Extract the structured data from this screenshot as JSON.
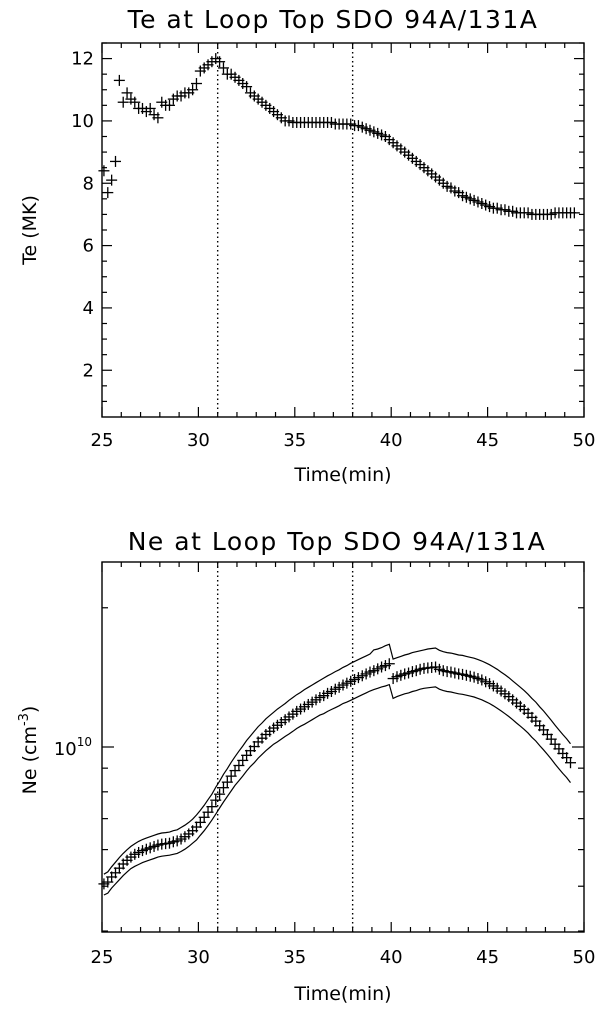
{
  "chart_data": [
    {
      "type": "scatter",
      "title": "Te at Loop Top SDO 94A/131A",
      "xlabel": "Time(min)",
      "ylabel": "Te (MK)",
      "xlim": [
        25,
        50
      ],
      "ylim": [
        0.5,
        12.5
      ],
      "xticks": [
        25,
        30,
        35,
        40,
        45,
        50
      ],
      "yticks": [
        2,
        4,
        6,
        8,
        10,
        12
      ],
      "vlines": [
        31,
        38
      ],
      "grid": false,
      "series": [
        {
          "marker": "plus",
          "x": [
            25.1,
            25.3,
            25.5,
            25.7,
            25.9,
            26.1,
            26.3,
            26.5,
            26.7,
            26.9,
            27.1,
            27.3,
            27.5,
            27.7,
            27.9,
            28.1,
            28.3,
            28.5,
            28.7,
            28.9,
            29.1,
            29.3,
            29.5,
            29.7,
            29.9,
            30.1,
            30.3,
            30.5,
            30.7,
            30.9,
            31.1,
            31.3,
            31.5,
            31.7,
            31.9,
            32.1,
            32.3,
            32.5,
            32.7,
            32.9,
            33.1,
            33.3,
            33.5,
            33.7,
            33.9,
            34.1,
            34.3,
            34.5,
            34.7,
            34.9,
            35.1,
            35.3,
            35.5,
            35.7,
            35.9,
            36.1,
            36.3,
            36.5,
            36.7,
            36.9,
            37.1,
            37.3,
            37.5,
            37.7,
            37.9,
            38.1,
            38.3,
            38.5,
            38.7,
            38.9,
            39.1,
            39.3,
            39.5,
            39.7,
            39.9,
            40.1,
            40.3,
            40.5,
            40.7,
            40.9,
            41.1,
            41.3,
            41.5,
            41.7,
            41.9,
            42.1,
            42.3,
            42.5,
            42.7,
            42.9,
            43.1,
            43.3,
            43.5,
            43.7,
            43.9,
            44.1,
            44.3,
            44.5,
            44.7,
            44.9,
            45.1,
            45.3,
            45.5,
            45.7,
            45.9,
            46.1,
            46.3,
            46.5,
            46.7,
            46.9,
            47.1,
            47.3,
            47.5,
            47.7,
            47.9,
            48.1,
            48.3,
            48.5,
            48.7,
            48.9,
            49.1,
            49.3,
            49.5
          ],
          "y": [
            8.4,
            7.7,
            8.1,
            8.7,
            11.3,
            10.6,
            10.9,
            10.7,
            10.6,
            10.4,
            10.4,
            10.3,
            10.4,
            10.2,
            10.1,
            10.6,
            10.5,
            10.5,
            10.7,
            10.8,
            10.8,
            10.9,
            10.9,
            11.0,
            11.2,
            11.6,
            11.7,
            11.8,
            11.9,
            12.0,
            11.9,
            11.7,
            11.5,
            11.5,
            11.4,
            11.3,
            11.2,
            11.1,
            10.9,
            10.8,
            10.7,
            10.6,
            10.5,
            10.4,
            10.3,
            10.2,
            10.1,
            10.0,
            10.0,
            9.95,
            9.95,
            9.95,
            9.95,
            9.95,
            9.95,
            9.95,
            9.95,
            9.95,
            9.95,
            9.95,
            9.9,
            9.9,
            9.9,
            9.9,
            9.9,
            9.85,
            9.85,
            9.8,
            9.75,
            9.7,
            9.65,
            9.6,
            9.55,
            9.5,
            9.4,
            9.3,
            9.2,
            9.1,
            9.0,
            8.9,
            8.8,
            8.7,
            8.6,
            8.5,
            8.4,
            8.3,
            8.2,
            8.1,
            8.0,
            7.9,
            7.85,
            7.75,
            7.7,
            7.6,
            7.55,
            7.5,
            7.45,
            7.4,
            7.35,
            7.3,
            7.25,
            7.2,
            7.2,
            7.15,
            7.15,
            7.1,
            7.1,
            7.05,
            7.05,
            7.05,
            7.05,
            7.0,
            7.0,
            7.0,
            7.0,
            7.0,
            7.0,
            7.05,
            7.05,
            7.05,
            7.05,
            7.05,
            7.05
          ]
        }
      ]
    },
    {
      "type": "scatter",
      "title": "Ne at Loop Top SDO 94A/131A",
      "xlabel": "Time(min)",
      "ylabel": "Ne (cm-3)",
      "ylabel_main": "Ne (cm",
      "ylabel_sup": "-3",
      "ylabel_end": ")",
      "ytick_label_base": "10",
      "ytick_label_exp": "10",
      "yscale": "log",
      "xlim": [
        25,
        50
      ],
      "ylim_log10": [
        9.6,
        10.4
      ],
      "xticks": [
        25,
        30,
        35,
        40,
        45,
        50
      ],
      "major_ytick_log10": 10,
      "vlines": [
        31,
        38
      ],
      "grid": false,
      "series": [
        {
          "marker": "plus",
          "x": [
            25.1,
            25.3,
            25.5,
            25.7,
            25.9,
            26.1,
            26.3,
            26.5,
            26.7,
            26.9,
            27.1,
            27.3,
            27.5,
            27.7,
            27.9,
            28.1,
            28.3,
            28.5,
            28.7,
            28.9,
            29.1,
            29.3,
            29.5,
            29.7,
            29.9,
            30.1,
            30.3,
            30.5,
            30.7,
            30.9,
            31.1,
            31.3,
            31.5,
            31.7,
            31.9,
            32.1,
            32.3,
            32.5,
            32.7,
            32.9,
            33.1,
            33.3,
            33.5,
            33.7,
            33.9,
            34.1,
            34.3,
            34.5,
            34.7,
            34.9,
            35.1,
            35.3,
            35.5,
            35.7,
            35.9,
            36.1,
            36.3,
            36.5,
            36.7,
            36.9,
            37.1,
            37.3,
            37.5,
            37.7,
            37.9,
            38.1,
            38.3,
            38.5,
            38.7,
            38.9,
            39.1,
            39.3,
            39.5,
            39.7,
            39.9,
            40.1,
            40.3,
            40.5,
            40.7,
            40.9,
            41.1,
            41.3,
            41.5,
            41.7,
            41.9,
            42.1,
            42.3,
            42.5,
            42.7,
            42.9,
            43.1,
            43.3,
            43.5,
            43.7,
            43.9,
            44.1,
            44.3,
            44.5,
            44.7,
            44.9,
            45.1,
            45.3,
            45.5,
            45.7,
            45.9,
            46.1,
            46.3,
            46.5,
            46.7,
            46.9,
            47.1,
            47.3,
            47.5,
            47.7,
            47.9,
            48.1,
            48.3,
            48.5,
            48.7,
            48.9,
            49.1,
            49.3
          ],
          "y_log10": [
            9.704,
            9.708,
            9.719,
            9.728,
            9.738,
            9.747,
            9.755,
            9.762,
            9.768,
            9.772,
            9.776,
            9.779,
            9.782,
            9.785,
            9.788,
            9.79,
            9.791,
            9.792,
            9.795,
            9.797,
            9.801,
            9.806,
            9.812,
            9.819,
            9.827,
            9.837,
            9.848,
            9.859,
            9.871,
            9.885,
            9.898,
            9.912,
            9.924,
            9.937,
            9.949,
            9.96,
            9.971,
            9.982,
            9.992,
            10.001,
            10.011,
            10.019,
            10.027,
            10.034,
            10.041,
            10.047,
            10.053,
            10.059,
            10.065,
            10.071,
            10.077,
            10.082,
            10.087,
            10.092,
            10.097,
            10.102,
            10.107,
            10.111,
            10.116,
            10.12,
            10.125,
            10.129,
            10.134,
            10.138,
            10.142,
            10.146,
            10.15,
            10.154,
            10.158,
            10.162,
            10.165,
            10.169,
            10.173,
            10.176,
            10.18,
            10.148,
            10.152,
            10.155,
            10.158,
            10.16,
            10.163,
            10.165,
            10.168,
            10.17,
            10.171,
            10.172,
            10.173,
            10.168,
            10.165,
            10.163,
            10.162,
            10.16,
            10.158,
            10.157,
            10.155,
            10.153,
            10.151,
            10.148,
            10.145,
            10.141,
            10.137,
            10.132,
            10.127,
            10.121,
            10.115,
            10.109,
            10.102,
            10.095,
            10.088,
            10.081,
            10.073,
            10.064,
            10.056,
            10.046,
            10.037,
            10.027,
            10.017,
            10.006,
            9.996,
            9.986,
            9.977,
            9.966
          ],
          "upper_log10": [
            9.725,
            9.73,
            9.741,
            9.751,
            9.761,
            9.77,
            9.778,
            9.785,
            9.791,
            9.796,
            9.8,
            9.803,
            9.806,
            9.809,
            9.812,
            9.814,
            9.815,
            9.816,
            9.819,
            9.821,
            9.826,
            9.831,
            9.837,
            9.844,
            9.853,
            9.863,
            9.874,
            9.886,
            9.898,
            9.913,
            9.926,
            9.941,
            9.953,
            9.967,
            9.979,
            9.991,
            10.002,
            10.014,
            10.024,
            10.034,
            10.044,
            10.052,
            10.061,
            10.068,
            10.075,
            10.082,
            10.088,
            10.094,
            10.101,
            10.107,
            10.113,
            10.118,
            10.124,
            10.129,
            10.134,
            10.139,
            10.144,
            10.149,
            10.154,
            10.158,
            10.163,
            10.167,
            10.172,
            10.176,
            10.181,
            10.185,
            10.189,
            10.193,
            10.197,
            10.201,
            10.21,
            10.212,
            10.215,
            10.219,
            10.222,
            10.19,
            10.193,
            10.196,
            10.199,
            10.201,
            10.204,
            10.206,
            10.208,
            10.21,
            10.212,
            10.213,
            10.214,
            10.209,
            10.206,
            10.204,
            10.203,
            10.201,
            10.199,
            10.198,
            10.196,
            10.194,
            10.192,
            10.189,
            10.186,
            10.182,
            10.178,
            10.173,
            10.168,
            10.162,
            10.156,
            10.15,
            10.143,
            10.136,
            10.129,
            10.122,
            10.114,
            10.105,
            10.097,
            10.087,
            10.078,
            10.068,
            10.058,
            10.047,
            10.037,
            10.027,
            10.018,
            10.007
          ],
          "lower_log10": [
            9.68,
            9.684,
            9.695,
            9.704,
            9.713,
            9.722,
            9.73,
            9.737,
            9.742,
            9.746,
            9.75,
            9.753,
            9.756,
            9.759,
            9.762,
            9.764,
            9.765,
            9.766,
            9.768,
            9.77,
            9.774,
            9.779,
            9.785,
            9.792,
            9.799,
            9.809,
            9.819,
            9.83,
            9.842,
            9.855,
            9.868,
            9.881,
            9.893,
            9.905,
            9.917,
            9.927,
            9.937,
            9.948,
            9.958,
            9.966,
            9.976,
            9.984,
            9.992,
            9.999,
            10.006,
            10.011,
            10.017,
            10.023,
            10.028,
            10.034,
            10.04,
            10.045,
            10.049,
            10.054,
            10.059,
            10.064,
            10.069,
            10.072,
            10.077,
            10.081,
            10.085,
            10.089,
            10.094,
            10.097,
            10.101,
            10.105,
            10.109,
            10.113,
            10.117,
            10.121,
            10.124,
            10.127,
            10.13,
            10.132,
            10.135,
            10.105,
            10.109,
            10.112,
            10.115,
            10.117,
            10.12,
            10.122,
            10.125,
            10.127,
            10.128,
            10.129,
            10.13,
            10.125,
            10.122,
            10.12,
            10.119,
            10.117,
            10.115,
            10.114,
            10.112,
            10.11,
            10.108,
            10.105,
            10.102,
            10.098,
            10.094,
            10.089,
            10.084,
            10.078,
            10.072,
            10.066,
            10.059,
            10.052,
            10.045,
            10.038,
            10.03,
            10.021,
            10.013,
            10.003,
            9.994,
            9.984,
            9.974,
            9.963,
            9.953,
            9.943,
            9.934,
            9.923
          ]
        }
      ]
    }
  ]
}
